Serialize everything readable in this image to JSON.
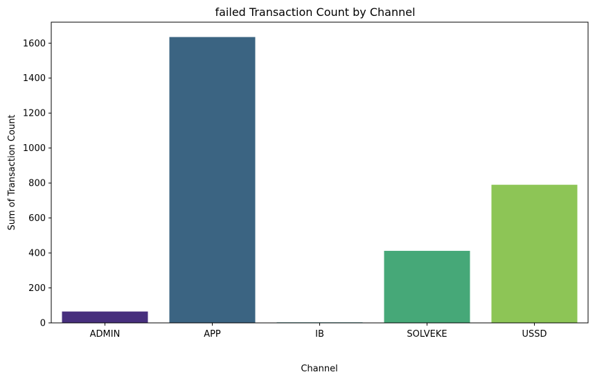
{
  "chart_data": {
    "type": "bar",
    "title": "failed Transaction Count by Channel",
    "xlabel": "Channel",
    "ylabel": "Sum of Transaction Count",
    "categories": [
      "ADMIN",
      "APP",
      "IB",
      "SOLVEKE",
      "USSD"
    ],
    "values": [
      65,
      1635,
      3,
      412,
      790
    ],
    "colors": [
      "#472f7d",
      "#3b6482",
      "#2e8f8b",
      "#46a878",
      "#8dc556"
    ],
    "ylim": [
      0,
      1720
    ],
    "yticks": [
      0,
      200,
      400,
      600,
      800,
      1000,
      1200,
      1400,
      1600
    ],
    "grid": false,
    "legend": "none"
  }
}
